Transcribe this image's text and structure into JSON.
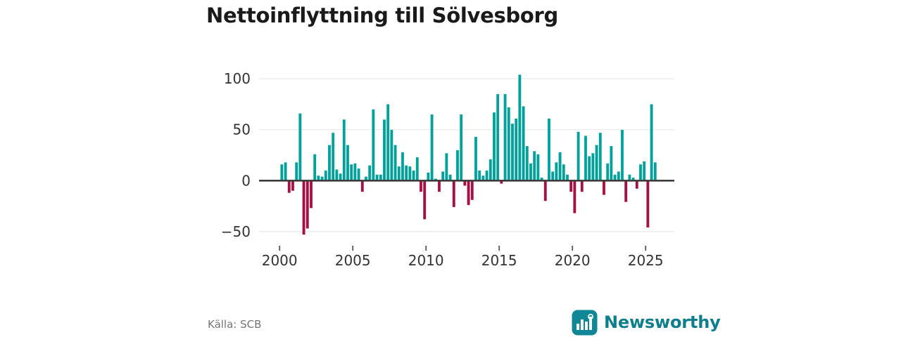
{
  "title": "Nettoinflyttning till Sölvesborg",
  "source": "Källa: SCB",
  "brand": {
    "name": "Newsworthy",
    "wordmark_color": "#0e7e8d",
    "icon": "bar-chart-logo-icon",
    "icon_color": "#0f8796"
  },
  "chart_data": {
    "type": "bar",
    "title": "Nettoinflyttning till Sölvesborg",
    "frequency": "quarterly",
    "start_period": "2000-Q1",
    "end_period": "2025-Q3",
    "values": [
      16,
      18,
      -12,
      -10,
      18,
      66,
      -53,
      -47,
      -27,
      26,
      5,
      4,
      10,
      35,
      47,
      11,
      7,
      60,
      35,
      16,
      17,
      12,
      -11,
      4,
      15,
      70,
      6,
      6,
      60,
      75,
      50,
      35,
      14,
      28,
      15,
      14,
      10,
      23,
      -11,
      -38,
      8,
      65,
      2,
      -11,
      9,
      27,
      6,
      -26,
      30,
      65,
      -5,
      -24,
      -19,
      43,
      10,
      5,
      10,
      21,
      67,
      85,
      -3,
      85,
      72,
      56,
      61,
      104,
      73,
      34,
      17,
      29,
      26,
      3,
      -20,
      61,
      9,
      18,
      28,
      16,
      6,
      -11,
      -32,
      48,
      -11,
      44,
      24,
      27,
      35,
      47,
      -14,
      17,
      34,
      6,
      9,
      50,
      -21,
      6,
      3,
      -8,
      16,
      19,
      -46,
      75,
      18
    ],
    "y_ticks": [
      {
        "label": "100",
        "value": 100
      },
      {
        "label": "50",
        "value": 50
      },
      {
        "label": "0",
        "value": 0
      },
      {
        "label": "−50",
        "value": -50
      }
    ],
    "x_ticks": [
      {
        "label": "2000",
        "year": 2000
      },
      {
        "label": "2005",
        "year": 2005
      },
      {
        "label": "2010",
        "year": 2010
      },
      {
        "label": "2015",
        "year": 2015
      },
      {
        "label": "2020",
        "year": 2020
      },
      {
        "label": "2025",
        "year": 2025
      }
    ],
    "ylim": [
      -55,
      110
    ],
    "grid": true,
    "legend": false,
    "colors": {
      "positive": "#00a09b",
      "negative": "#a60f43",
      "gridline": "#e4e4e4",
      "zero_line": "#3d3d3d",
      "tick_text": "#333333"
    }
  }
}
